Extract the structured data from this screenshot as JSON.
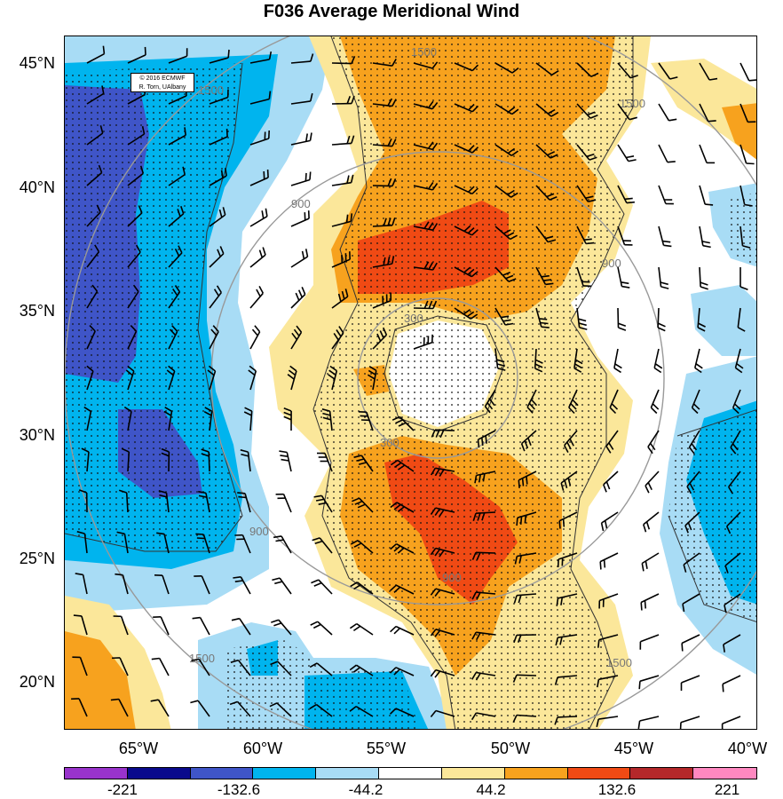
{
  "title": "F036 Average Meridional Wind",
  "credit": {
    "line1": "© 2016 ECMWF",
    "line2": "R. Torn, UAlbany"
  },
  "map": {
    "lat_labels": [
      "45°N",
      "40°N",
      "35°N",
      "30°N",
      "25°N",
      "20°N"
    ],
    "lon_labels": [
      "65°W",
      "60°W",
      "55°W",
      "50°W",
      "45°W",
      "40°W"
    ],
    "range_ring_labels": [
      "300",
      "300",
      "900",
      "900",
      "900",
      "900",
      "1500",
      "1500",
      "1500",
      "1500",
      "1500"
    ],
    "colors": {
      "neg_extreme": "#9933cc",
      "neg_strong": "#0a0a8c",
      "neg_high": "#3f55c8",
      "neg_mid": "#00b4ee",
      "neg_low": "#a8dcf5",
      "neutral": "#ffffff",
      "pos_low": "#fbe79a",
      "pos_mid": "#f7a21e",
      "pos_high": "#f04a14",
      "pos_strong": "#b4282a",
      "pos_extreme": "#ff88c0"
    }
  },
  "colorbar": {
    "colors": [
      "#9933cc",
      "#0a0a8c",
      "#3f55c8",
      "#00b4ee",
      "#a8dcf5",
      "#ffffff",
      "#fbe79a",
      "#f7a21e",
      "#f04a14",
      "#b4282a",
      "#ff88c0"
    ],
    "labels": [
      "-221",
      "-132.6",
      "-44.2",
      "44.2",
      "132.6",
      "221"
    ]
  }
}
